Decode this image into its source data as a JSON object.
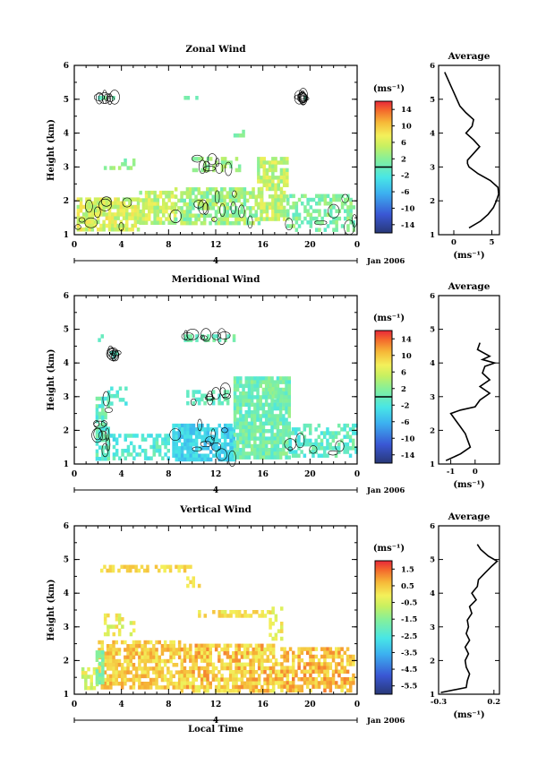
{
  "chart_data": [
    {
      "type": "heatmap",
      "title": "Zonal Wind",
      "ylabel": "Height (km)",
      "xlabel": "",
      "xticks": [
        "0",
        "4",
        "8",
        "12",
        "16",
        "20",
        "0"
      ],
      "yticks": [
        "1",
        "2",
        "3",
        "4",
        "5",
        "6"
      ],
      "xlim": [
        0,
        24
      ],
      "ylim": [
        1,
        6
      ],
      "date_label": "Jan 2006",
      "day_marker": "4",
      "colorbar": {
        "unit": "(ms⁻¹)",
        "ticks": [
          "14",
          "10",
          "6",
          "2",
          "-2",
          "-6",
          "-10",
          "-14"
        ],
        "range": [
          -16,
          16
        ]
      },
      "clusters": [
        {
          "t": [
            0.2,
            5.5
          ],
          "h": [
            1.2,
            2.1
          ],
          "v": [
            3,
            9
          ],
          "d": 0.8
        },
        {
          "t": [
            5.5,
            8.5
          ],
          "h": [
            1.4,
            2.3
          ],
          "v": [
            2,
            8
          ],
          "d": 0.75
        },
        {
          "t": [
            8.5,
            16
          ],
          "h": [
            1.3,
            2.4
          ],
          "v": [
            0,
            6
          ],
          "d": 0.7
        },
        {
          "t": [
            15.5,
            18
          ],
          "h": [
            1.5,
            3.3
          ],
          "v": [
            2,
            8
          ],
          "d": 0.8
        },
        {
          "t": [
            18,
            23.8
          ],
          "h": [
            1.2,
            2.2
          ],
          "v": [
            -1,
            4
          ],
          "d": 0.55
        },
        {
          "t": [
            2.5,
            5
          ],
          "h": [
            3.0,
            3.25
          ],
          "v": [
            0,
            4
          ],
          "d": 0.5
        },
        {
          "t": [
            10,
            14
          ],
          "h": [
            2.9,
            3.3
          ],
          "v": [
            1,
            5
          ],
          "d": 0.4
        },
        {
          "t": [
            13.5,
            14.5
          ],
          "h": [
            3.9,
            4.1
          ],
          "v": [
            0,
            3
          ],
          "d": 0.6
        },
        {
          "t": [
            2,
            3.5
          ],
          "h": [
            5.0,
            5.1
          ],
          "v": [
            -1,
            2
          ],
          "d": 0.7
        },
        {
          "t": [
            9.3,
            10.5
          ],
          "h": [
            5.0,
            5.1
          ],
          "v": [
            0,
            2
          ],
          "d": 0.7
        },
        {
          "t": [
            19,
            19.5
          ],
          "h": [
            5.0,
            5.1
          ],
          "v": [
            -1,
            1
          ],
          "d": 0.7
        }
      ],
      "average": {
        "xlim": [
          -2,
          6
        ],
        "xticks": [
          "0",
          "5"
        ],
        "xunit": "(ms⁻¹)",
        "h": [
          1.2,
          1.4,
          1.6,
          1.8,
          2.0,
          2.2,
          2.4,
          2.6,
          2.8,
          3.0,
          3.1,
          3.2,
          3.4,
          3.6,
          3.8,
          4.0,
          4.2,
          4.4,
          4.6,
          4.8,
          5.0,
          5.2,
          5.4,
          5.6,
          5.8
        ],
        "v": [
          2.0,
          3.5,
          4.5,
          5.2,
          5.6,
          5.9,
          5.8,
          4.8,
          3.2,
          2.0,
          1.8,
          1.8,
          2.6,
          3.4,
          2.6,
          1.6,
          2.4,
          2.6,
          1.6,
          0.8,
          0.4,
          0.0,
          -0.4,
          -0.8,
          -1.2
        ]
      }
    },
    {
      "type": "heatmap",
      "title": "Meridional Wind",
      "ylabel": "Height (km)",
      "xlabel": "",
      "xticks": [
        "0",
        "4",
        "8",
        "12",
        "16",
        "20",
        "0"
      ],
      "yticks": [
        "1",
        "2",
        "3",
        "4",
        "5",
        "6"
      ],
      "xlim": [
        0,
        24
      ],
      "ylim": [
        1,
        6
      ],
      "date_label": "Jan 2006",
      "day_marker": "4",
      "colorbar": {
        "unit": "(ms⁻¹)",
        "ticks": [
          "14",
          "10",
          "6",
          "2",
          "-2",
          "-6",
          "-10",
          "-14"
        ],
        "range": [
          -16,
          16
        ]
      },
      "clusters": [
        {
          "t": [
            1.8,
            3.0
          ],
          "h": [
            1.2,
            3.0
          ],
          "v": [
            -3,
            2
          ],
          "d": 0.75
        },
        {
          "t": [
            3.0,
            8.0
          ],
          "h": [
            1.2,
            1.9
          ],
          "v": [
            -4,
            1
          ],
          "d": 0.45
        },
        {
          "t": [
            8.3,
            13.5
          ],
          "h": [
            1.1,
            2.2
          ],
          "v": [
            -6,
            -2
          ],
          "d": 0.85
        },
        {
          "t": [
            13.5,
            18.2
          ],
          "h": [
            1.2,
            3.6
          ],
          "v": [
            -2,
            3
          ],
          "d": 0.9
        },
        {
          "t": [
            18.2,
            23.8
          ],
          "h": [
            1.2,
            2.2
          ],
          "v": [
            -3,
            2
          ],
          "d": 0.5
        },
        {
          "t": [
            2.8,
            4.6
          ],
          "h": [
            2.7,
            3.3
          ],
          "v": [
            -3,
            1
          ],
          "d": 0.35
        },
        {
          "t": [
            9.5,
            13
          ],
          "h": [
            2.8,
            3.2
          ],
          "v": [
            -2,
            1
          ],
          "d": 0.45
        },
        {
          "t": [
            16.5,
            17.5
          ],
          "h": [
            3.0,
            3.4
          ],
          "v": [
            0,
            3
          ],
          "d": 0.6
        },
        {
          "t": [
            3,
            3.6
          ],
          "h": [
            4.2,
            4.35
          ],
          "v": [
            -2,
            0
          ],
          "d": 0.6
        },
        {
          "t": [
            2,
            2.4
          ],
          "h": [
            4.7,
            4.85
          ],
          "v": [
            -2,
            0
          ],
          "d": 0.6
        },
        {
          "t": [
            9.3,
            13.5
          ],
          "h": [
            4.72,
            4.85
          ],
          "v": [
            -1,
            2
          ],
          "d": 0.55
        }
      ],
      "average": {
        "xlim": [
          -1.5,
          1
        ],
        "xticks": [
          "-1",
          "0"
        ],
        "xunit": "(ms⁻¹)",
        "h": [
          1.1,
          1.3,
          1.5,
          1.7,
          1.9,
          2.1,
          2.3,
          2.5,
          2.6,
          2.7,
          2.9,
          3.1,
          3.3,
          3.5,
          3.7,
          3.9,
          4.0,
          4.1,
          4.2,
          4.4,
          4.6
        ],
        "v": [
          -1.2,
          -0.6,
          -0.2,
          -0.3,
          -0.4,
          -0.6,
          -0.8,
          -1.0,
          -0.6,
          0.0,
          0.2,
          0.6,
          0.2,
          0.6,
          0.3,
          0.4,
          0.8,
          0.3,
          0.6,
          0.1,
          0.2
        ]
      }
    },
    {
      "type": "heatmap",
      "title": "Vertical Wind",
      "ylabel": "Height (km)",
      "xlabel": "Local Time",
      "xticks": [
        "0",
        "4",
        "8",
        "12",
        "16",
        "20",
        "0"
      ],
      "yticks": [
        "1",
        "2",
        "3",
        "4",
        "5",
        "6"
      ],
      "xlim": [
        0,
        24
      ],
      "ylim": [
        1,
        6
      ],
      "date_label": "Jan 2006",
      "day_marker": "4",
      "colorbar": {
        "unit": "(ms⁻¹)",
        "ticks": [
          "1.5",
          "0.5",
          "-0.5",
          "-1.5",
          "-2.5",
          "-3.5",
          "-4.5",
          "-5.5"
        ],
        "range": [
          -6,
          2
        ]
      },
      "clusters": [
        {
          "t": [
            0.6,
            2.0
          ],
          "h": [
            1.2,
            1.8
          ],
          "v": [
            -1.2,
            0.2
          ],
          "d": 0.6
        },
        {
          "t": [
            2.0,
            9.0
          ],
          "h": [
            1.2,
            2.6
          ],
          "v": [
            -0.2,
            1.0
          ],
          "d": 0.7
        },
        {
          "t": [
            9.0,
            17.0
          ],
          "h": [
            1.1,
            2.5
          ],
          "v": [
            -0.3,
            1.2
          ],
          "d": 0.75
        },
        {
          "t": [
            17.0,
            23.8
          ],
          "h": [
            1.1,
            2.4
          ],
          "v": [
            -0.1,
            1.3
          ],
          "d": 0.65
        },
        {
          "t": [
            2.5,
            5
          ],
          "h": [
            2.8,
            3.4
          ],
          "v": [
            -0.8,
            0.4
          ],
          "d": 0.35
        },
        {
          "t": [
            10,
            16.5
          ],
          "h": [
            3.3,
            3.5
          ],
          "v": [
            -0.4,
            0.6
          ],
          "d": 0.55
        },
        {
          "t": [
            16.5,
            17.5
          ],
          "h": [
            2.6,
            3.6
          ],
          "v": [
            -0.5,
            0.5
          ],
          "d": 0.5
        },
        {
          "t": [
            2.2,
            9.8
          ],
          "h": [
            4.72,
            4.84
          ],
          "v": [
            -0.1,
            0.6
          ],
          "d": 0.7
        },
        {
          "t": [
            9.5,
            10.5
          ],
          "h": [
            4.2,
            4.5
          ],
          "v": [
            -0.1,
            0.5
          ],
          "d": 0.4
        },
        {
          "t": [
            1.8,
            2.3
          ],
          "h": [
            1.3,
            2.3
          ],
          "v": [
            -2.0,
            -1.2
          ],
          "d": 0.8
        }
      ],
      "average": {
        "xlim": [
          -0.3,
          0.25
        ],
        "xticks": [
          "-0.3",
          "0.2"
        ],
        "xunit": "(ms⁻¹)",
        "h": [
          1.05,
          1.2,
          1.4,
          1.6,
          1.8,
          2.0,
          2.2,
          2.4,
          2.6,
          2.8,
          3.0,
          3.2,
          3.4,
          3.6,
          3.8,
          4.0,
          4.2,
          4.4,
          4.6,
          4.8,
          4.95,
          5.1,
          5.3,
          5.45
        ],
        "v": [
          -0.28,
          -0.05,
          -0.04,
          -0.02,
          -0.05,
          -0.06,
          -0.03,
          -0.06,
          -0.02,
          -0.05,
          -0.03,
          -0.04,
          0.0,
          -0.02,
          0.04,
          0.0,
          0.05,
          0.06,
          0.12,
          0.18,
          0.23,
          0.15,
          0.08,
          0.05
        ]
      }
    }
  ]
}
